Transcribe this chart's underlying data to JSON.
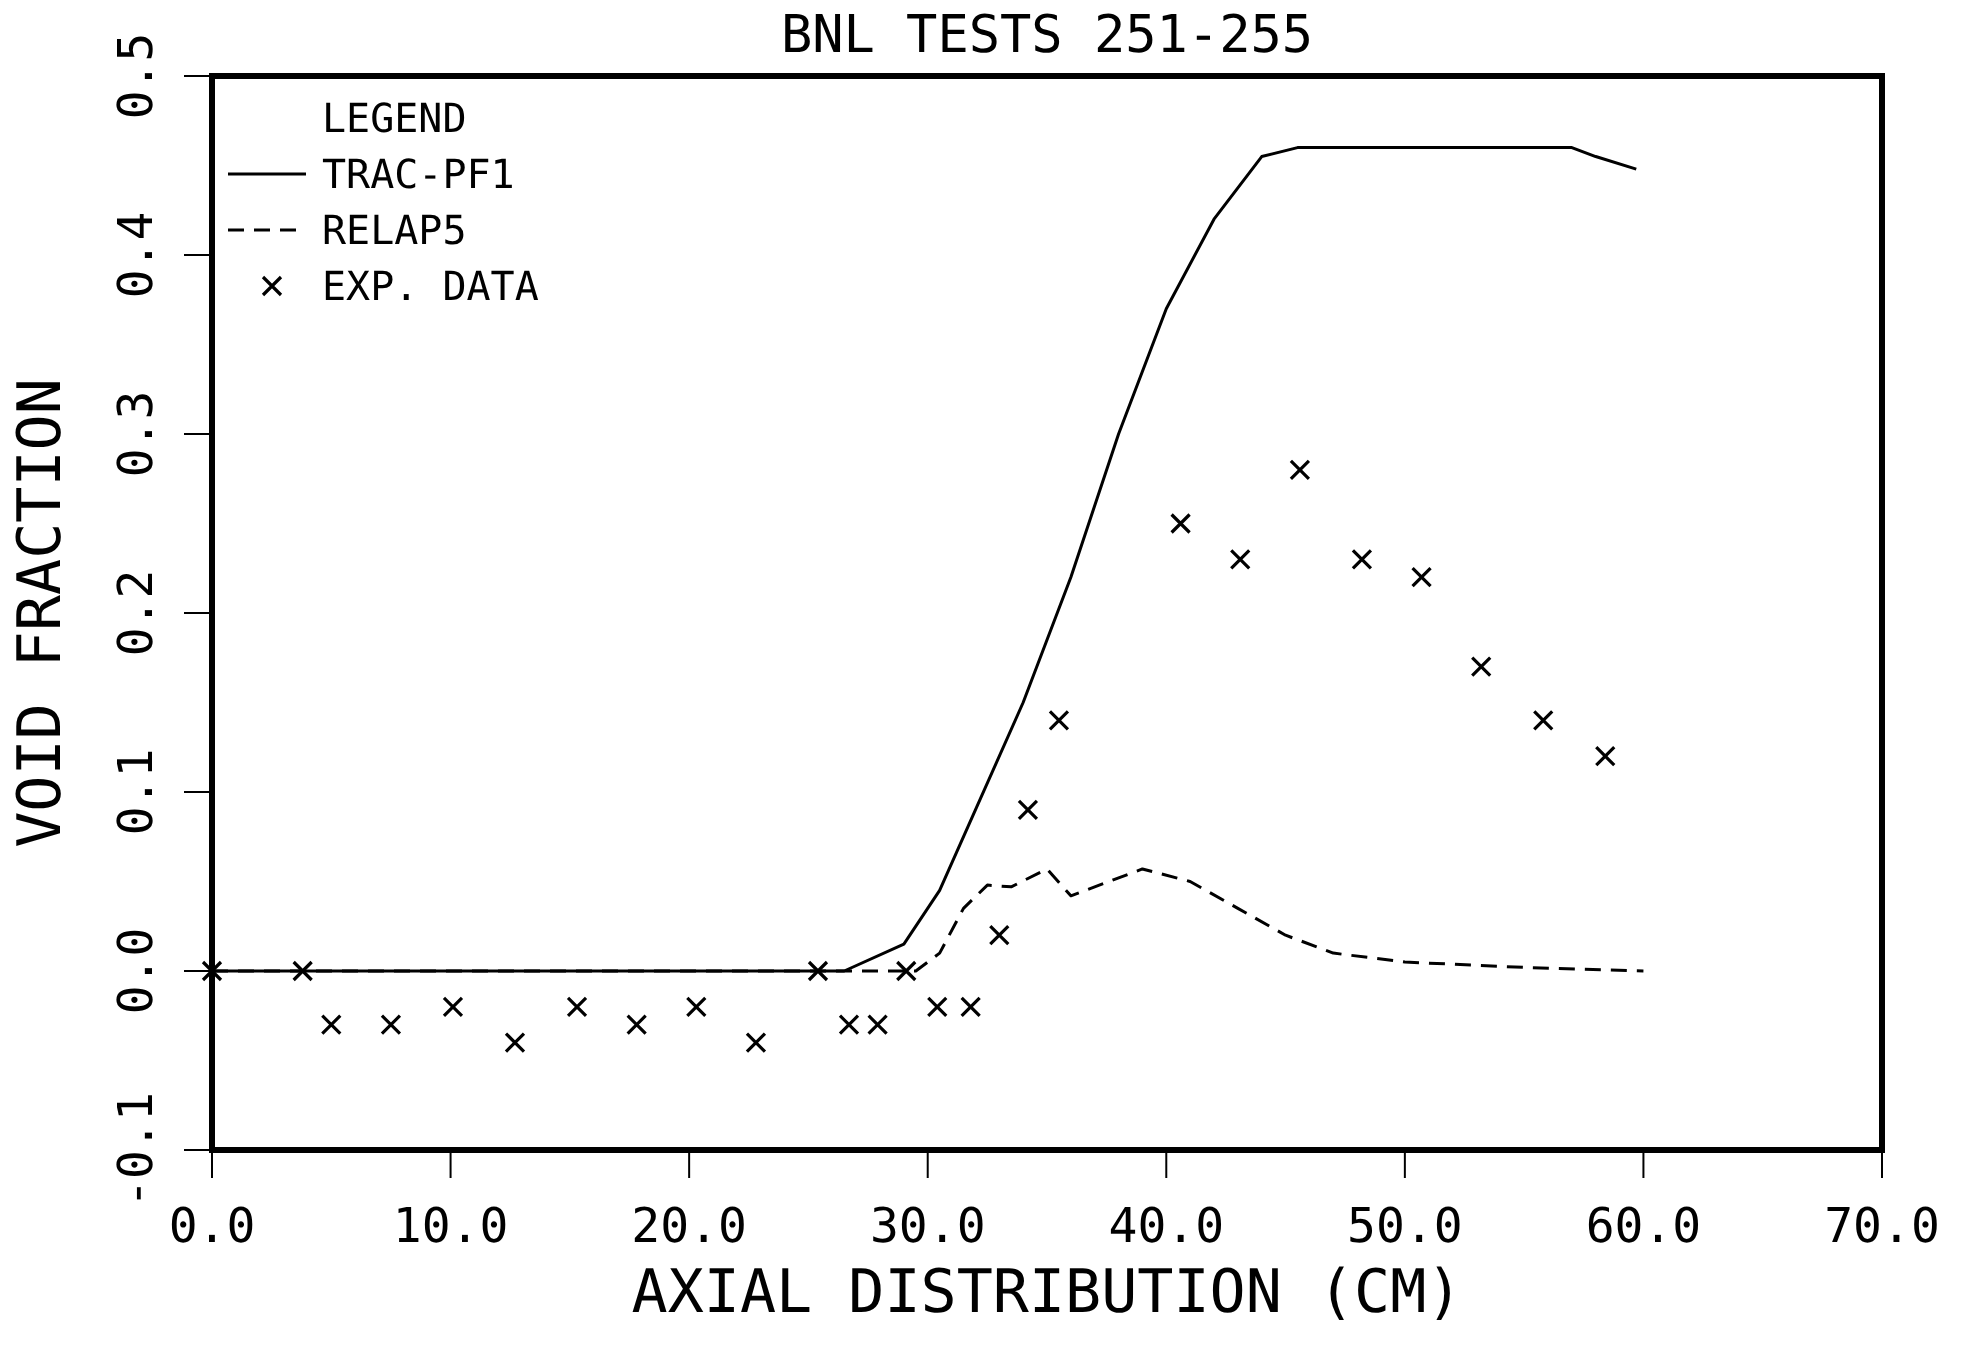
{
  "chart_data": {
    "type": "line",
    "title": "BNL TESTS 251-255",
    "xlabel": "AXIAL DISTRIBUTION (CM)",
    "ylabel": "VOID FRACTION",
    "legend_title": "LEGEND",
    "xlim": [
      0,
      70
    ],
    "xticks": [
      {
        "value": 0,
        "label": "0.0"
      },
      {
        "value": 10,
        "label": "10.0"
      },
      {
        "value": 20,
        "label": "20.0"
      },
      {
        "value": 30,
        "label": "30.0"
      },
      {
        "value": 40,
        "label": "40.0"
      },
      {
        "value": 50,
        "label": "50.0"
      },
      {
        "value": 60,
        "label": "60.0"
      },
      {
        "value": 70,
        "label": "70.0"
      }
    ],
    "ylim": [
      -0.1,
      0.5
    ],
    "yticks": [
      {
        "value": -0.1,
        "label": "-0.1"
      },
      {
        "value": 0,
        "label": "0.0"
      },
      0.1,
      0.2,
      0.3,
      0.4,
      0.5
    ],
    "grid": false,
    "legend": "top left",
    "series": [
      {
        "name": "TRAC-PF1",
        "line_style": "solid",
        "color": "#000000",
        "x": [
          0,
          10,
          20,
          26.5,
          29,
          30.5,
          32,
          34,
          36,
          38,
          40,
          42,
          44,
          45.5,
          50,
          57,
          58,
          59.7
        ],
        "values": [
          0,
          0,
          0,
          0,
          0.015,
          0.045,
          0.09,
          0.15,
          0.22,
          0.3,
          0.37,
          0.42,
          0.455,
          0.46,
          0.46,
          0.46,
          0.455,
          0.448
        ]
      },
      {
        "name": "RELAP5",
        "line_style": "dashed",
        "color": "#000000",
        "x": [
          0,
          10,
          20,
          29.5,
          30.5,
          31.5,
          32.5,
          33.5,
          35,
          36,
          37,
          39,
          41,
          43,
          45,
          47,
          50,
          55,
          60
        ],
        "values": [
          0,
          0,
          0,
          0,
          0.01,
          0.035,
          0.048,
          0.047,
          0.057,
          0.042,
          0.047,
          0.057,
          0.05,
          0.035,
          0.02,
          0.01,
          0.005,
          0.002,
          0
        ]
      },
      {
        "name": "EXP. DATA",
        "type": "scatter",
        "marker": "cross",
        "color": "#000000",
        "x": [
          0,
          3.8,
          5.0,
          7.5,
          10.1,
          12.7,
          15.3,
          17.8,
          20.3,
          22.8,
          25.4,
          26.7,
          27.9,
          29.1,
          30.4,
          31.8,
          33.0,
          34.2,
          35.5,
          40.6,
          43.1,
          45.6,
          48.2,
          50.7,
          53.2,
          55.8,
          58.4
        ],
        "values": [
          0,
          0,
          -0.03,
          -0.03,
          -0.02,
          -0.04,
          -0.02,
          -0.03,
          -0.02,
          -0.04,
          0,
          -0.03,
          -0.03,
          0,
          -0.02,
          -0.02,
          0.02,
          0.09,
          0.14,
          0.25,
          0.23,
          0.28,
          0.23,
          0.22,
          0.17,
          0.14,
          0.12
        ]
      }
    ]
  }
}
